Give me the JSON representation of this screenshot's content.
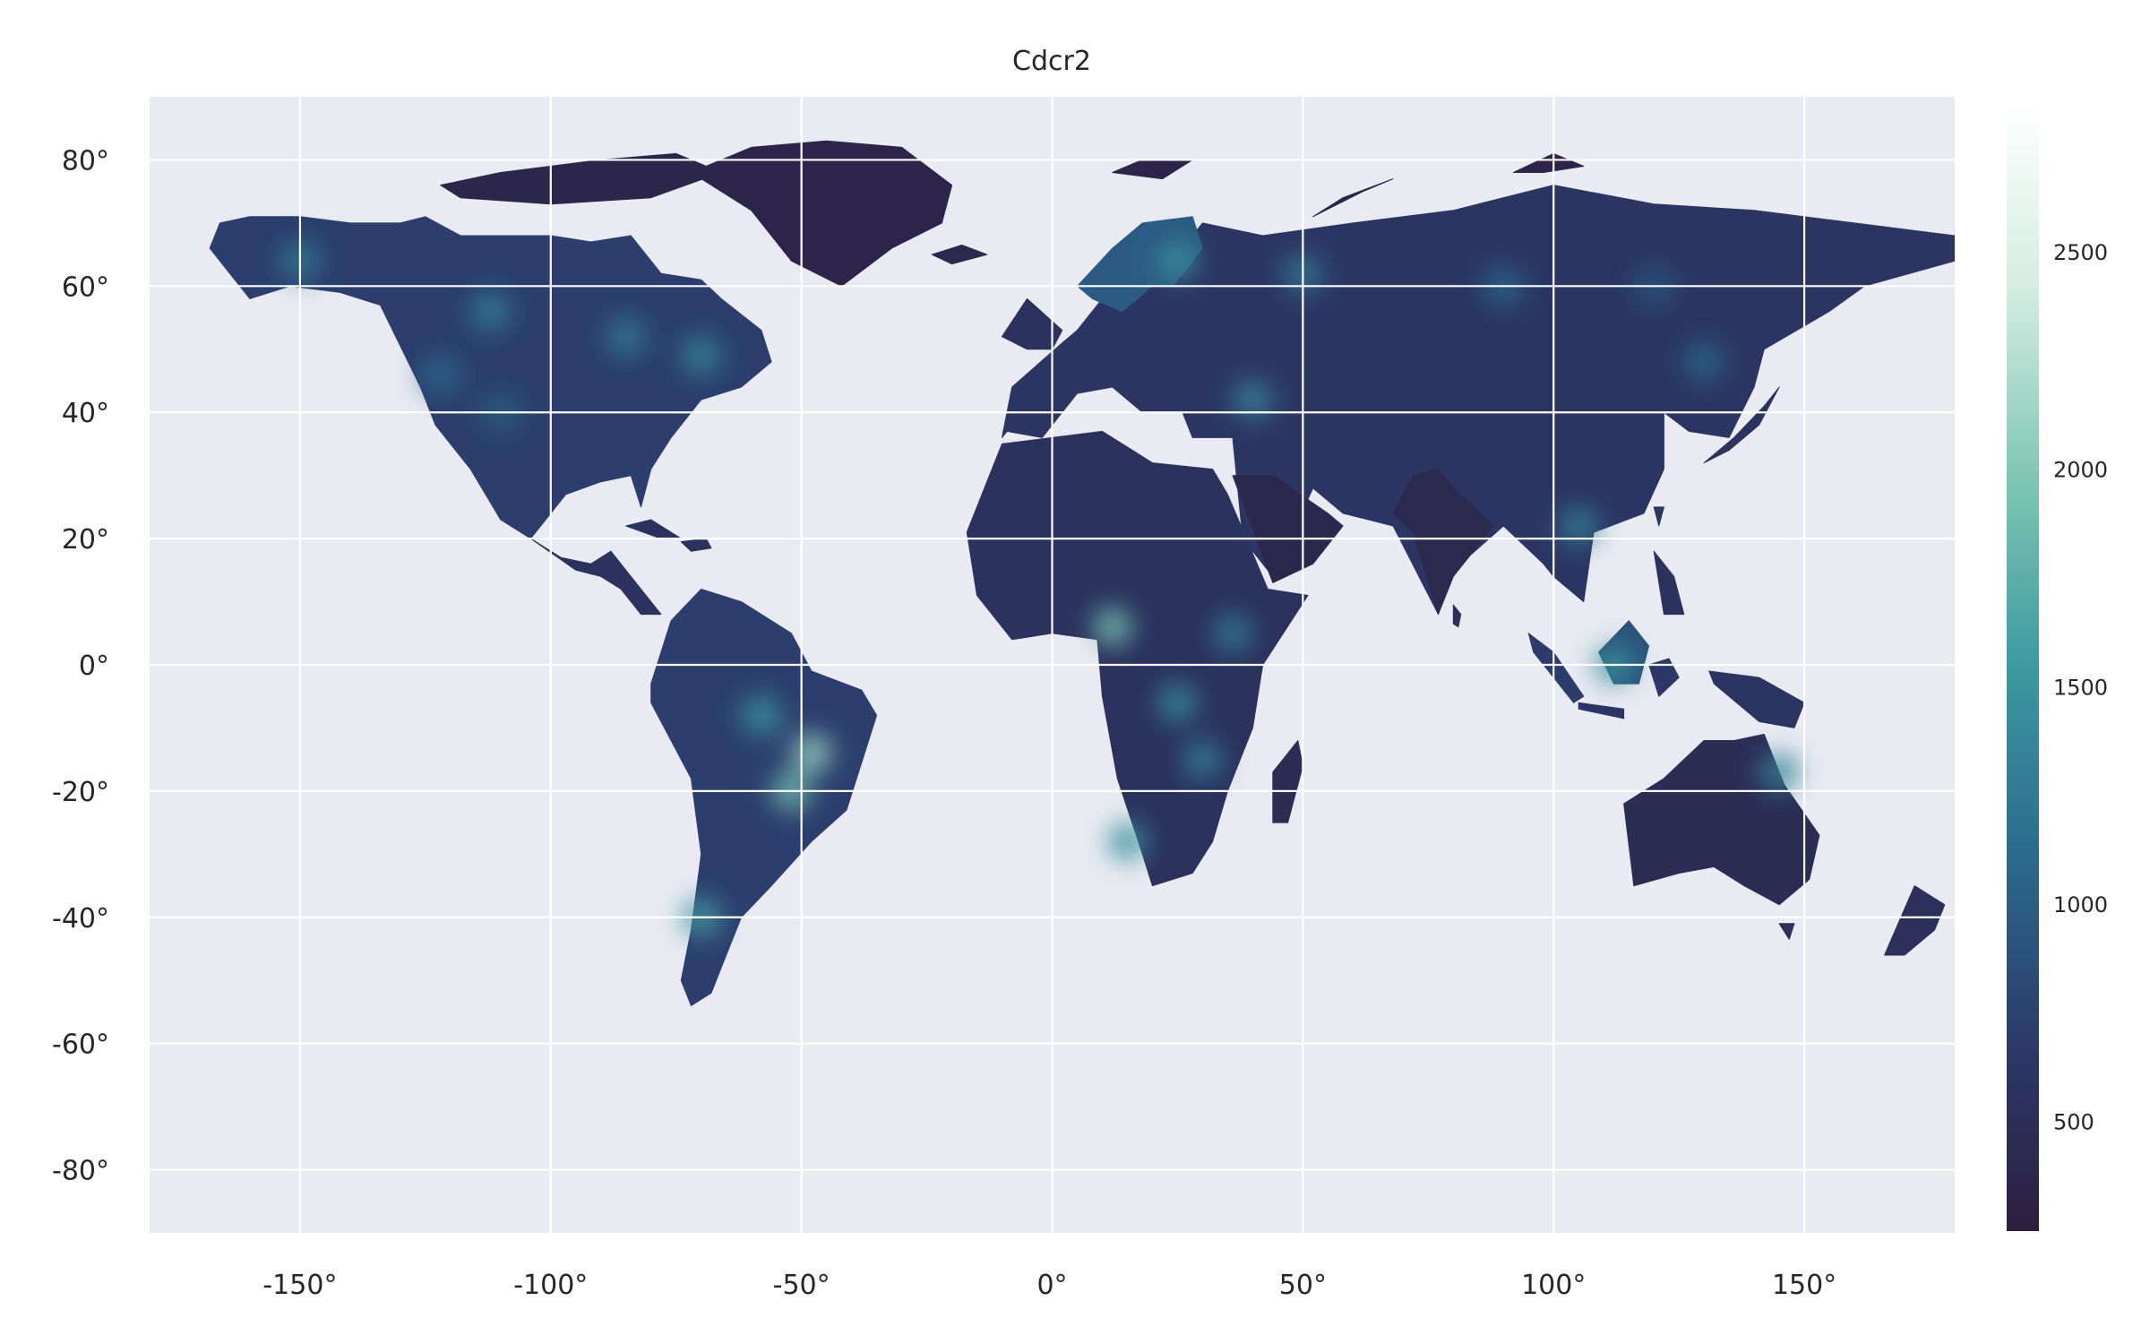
{
  "chart_data": {
    "type": "heatmap",
    "title": "Cdcr2",
    "xlabel": "",
    "ylabel": "",
    "xlim": [
      -180,
      180
    ],
    "ylim": [
      -90,
      90
    ],
    "x_ticks": [
      -150,
      -100,
      -50,
      0,
      50,
      100,
      150
    ],
    "x_tick_labels": [
      "-150°",
      "-100°",
      "-50°",
      "0°",
      "50°",
      "100°",
      "150°"
    ],
    "y_ticks": [
      80,
      60,
      40,
      20,
      0,
      -20,
      -40,
      -60,
      -80
    ],
    "y_tick_labels": [
      "80°",
      "60°",
      "40°",
      "20°",
      "0°",
      "-20°",
      "-40°",
      "-60°",
      "-80°"
    ],
    "grid": true,
    "background_color": "#eaeaf2",
    "colorbar": {
      "vmin": 250,
      "vmax": 2850,
      "ticks": [
        500,
        1000,
        1500,
        2000,
        2500
      ],
      "tick_labels": [
        "500",
        "1000",
        "1500",
        "2000",
        "2500"
      ],
      "colors": [
        "#2c1e3e",
        "#2b3a6a",
        "#2b6a8e",
        "#3d9aa0",
        "#7fc7b3",
        "#d4ede3",
        "#ffffff"
      ]
    },
    "regions": [
      {
        "name": "North America",
        "lon": [
          -168,
          -166,
          -160,
          -150,
          -140,
          -130,
          -125,
          -118,
          -112,
          -100,
          -92,
          -84,
          -78,
          -70,
          -66,
          -58,
          -56,
          -62,
          -70,
          -76,
          -80,
          -82,
          -84,
          -90,
          -97,
          -104,
          -110,
          -116,
          -123,
          -126,
          -134,
          -142,
          -152,
          -160,
          -168
        ],
        "lat": [
          66,
          70,
          71,
          71,
          70,
          70,
          71,
          68,
          68,
          68,
          67,
          68,
          62,
          61,
          58,
          53,
          48,
          44,
          42,
          36,
          31,
          25,
          30,
          29,
          27,
          20,
          23,
          31,
          38,
          44,
          57,
          59,
          60,
          58,
          66
        ],
        "value": 720
      },
      {
        "name": "Central America",
        "lon": [
          -104,
          -98,
          -92,
          -88,
          -84,
          -80,
          -78,
          -82,
          -86,
          -90,
          -95,
          -104
        ],
        "lat": [
          20,
          17,
          16,
          18,
          14,
          10,
          8,
          8,
          12,
          14,
          15,
          20
        ],
        "value": 560
      },
      {
        "name": "South America",
        "lon": [
          -80,
          -76,
          -70,
          -62,
          -52,
          -48,
          -38,
          -35,
          -39,
          -41,
          -48,
          -56,
          -62,
          -65,
          -68,
          -72,
          -74,
          -72,
          -70,
          -72,
          -80,
          -80
        ],
        "lat": [
          -3,
          7,
          12,
          10,
          5,
          -1,
          -4,
          -8,
          -18,
          -23,
          -28,
          -35,
          -40,
          -46,
          -52,
          -54,
          -50,
          -42,
          -30,
          -18,
          -6,
          -3
        ],
        "value": 720
      },
      {
        "name": "Greenland",
        "lon": [
          -72,
          -60,
          -45,
          -30,
          -20,
          -22,
          -32,
          -42,
          -52,
          -60,
          -72
        ],
        "lat": [
          78,
          82,
          83,
          82,
          76,
          70,
          66,
          60,
          64,
          72,
          78
        ],
        "value": 360
      },
      {
        "name": "Arctic Islands",
        "lon": [
          -122,
          -110,
          -90,
          -75,
          -66,
          -80,
          -100,
          -118,
          -122
        ],
        "lat": [
          76,
          78,
          80,
          81,
          78,
          74,
          73,
          74,
          76
        ],
        "value": 380
      },
      {
        "name": "Africa",
        "lon": [
          -17,
          -10,
          0,
          10,
          20,
          32,
          35,
          43,
          51,
          42,
          40,
          35,
          32,
          28,
          20,
          18,
          13,
          10,
          9,
          0,
          -8,
          -15,
          -17
        ],
        "lat": [
          21,
          35,
          36,
          37,
          32,
          31,
          27,
          12,
          11,
          0,
          -10,
          -20,
          -28,
          -33,
          -35,
          -30,
          -18,
          -5,
          4,
          5,
          4,
          11,
          21
        ],
        "value": 560
      },
      {
        "name": "Madagascar",
        "lon": [
          44,
          49,
          50,
          47,
          44,
          44
        ],
        "lat": [
          -17,
          -12,
          -16,
          -25,
          -25,
          -17
        ],
        "value": 480
      },
      {
        "name": "Eurasia",
        "lon": [
          -10,
          -8,
          2,
          5,
          10,
          20,
          30,
          42,
          60,
          80,
          100,
          120,
          140,
          160,
          180,
          180,
          162,
          155,
          142,
          140,
          135,
          127,
          122,
          122,
          118,
          108,
          106,
          100,
          98,
          90,
          80,
          77,
          68,
          58,
          52,
          44,
          38,
          36,
          28,
          26,
          18,
          12,
          5,
          -2,
          -9,
          -10
        ],
        "lat": [
          36,
          44,
          51,
          53,
          58,
          60,
          70,
          68,
          70,
          72,
          76,
          73,
          72,
          70,
          68,
          64,
          60,
          56,
          50,
          44,
          36,
          37,
          40,
          31,
          24,
          21,
          10,
          14,
          16,
          22,
          15,
          8,
          22,
          24,
          28,
          14,
          20,
          36,
          36,
          40,
          40,
          44,
          43,
          36,
          37,
          36
        ],
        "value": 600
      },
      {
        "name": "Scandinavia",
        "lon": [
          5,
          12,
          18,
          28,
          30,
          24,
          20,
          14,
          8,
          5
        ],
        "lat": [
          60,
          66,
          70,
          71,
          66,
          60,
          60,
          56,
          58,
          60
        ],
        "value": 980
      },
      {
        "name": "Arabia",
        "lon": [
          36,
          44,
          55,
          58,
          52,
          44,
          36
        ],
        "lat": [
          30,
          30,
          24,
          22,
          16,
          13,
          30
        ],
        "value": 400
      },
      {
        "name": "India",
        "lon": [
          68,
          72,
          77,
          80,
          86,
          88,
          80,
          77,
          72,
          68
        ],
        "lat": [
          24,
          21,
          8,
          14,
          20,
          22,
          28,
          31,
          30,
          24
        ],
        "value": 420
      },
      {
        "name": "Borneo",
        "lon": [
          109,
          115,
          119,
          117,
          112,
          109
        ],
        "lat": [
          2,
          7,
          3,
          -3,
          -3,
          2
        ],
        "value": 900
      },
      {
        "name": "Sumatra",
        "lon": [
          95,
          100,
          106,
          104,
          96,
          95
        ],
        "lat": [
          5,
          2,
          -5,
          -6,
          2,
          5
        ],
        "value": 700
      },
      {
        "name": "Java",
        "lon": [
          105,
          114,
          114,
          105,
          105
        ],
        "lat": [
          -6,
          -7,
          -8.5,
          -7,
          -6
        ],
        "value": 600
      },
      {
        "name": "Sulawesi",
        "lon": [
          119,
          123,
          125,
          121,
          119
        ],
        "lat": [
          0,
          1,
          -2,
          -5,
          0
        ],
        "value": 650
      },
      {
        "name": "Philippines",
        "lon": [
          120,
          124,
          126,
          122,
          120
        ],
        "lat": [
          18,
          14,
          8,
          8,
          18
        ],
        "value": 560
      },
      {
        "name": "New Guinea",
        "lon": [
          131,
          141,
          150,
          148,
          141,
          132,
          131
        ],
        "lat": [
          -1,
          -2,
          -6,
          -10,
          -9,
          -3,
          -1
        ],
        "value": 600
      },
      {
        "name": "Japan",
        "lon": [
          130,
          135,
          141,
          145,
          142,
          136,
          130
        ],
        "lat": [
          32,
          34,
          38,
          44,
          41,
          36,
          32
        ],
        "value": 580
      },
      {
        "name": "Australia",
        "lon": [
          114,
          122,
          130,
          136,
          142,
          146,
          153,
          151,
          145,
          138,
          132,
          125,
          116,
          114
        ],
        "lat": [
          -22,
          -18,
          -12,
          -12,
          -11,
          -19,
          -27,
          -34,
          -38,
          -35,
          -32,
          -33,
          -35,
          -22
        ],
        "value": 480
      },
      {
        "name": "New Zealand",
        "lon": [
          172,
          178,
          176,
          170,
          166,
          172
        ],
        "lat": [
          -35,
          -38,
          -42,
          -46,
          -46,
          -35
        ],
        "value": 520
      },
      {
        "name": "British Isles",
        "lon": [
          -10,
          -5,
          2,
          0,
          -5,
          -10
        ],
        "lat": [
          52,
          58,
          53,
          50,
          50,
          52
        ],
        "value": 560
      },
      {
        "name": "Iceland",
        "lon": [
          -24,
          -18,
          -13,
          -20,
          -24
        ],
        "lat": [
          65,
          66.5,
          65,
          63.5,
          65
        ],
        "value": 420
      },
      {
        "name": "Svalbard",
        "lon": [
          12,
          18,
          28,
          22,
          12
        ],
        "lat": [
          78,
          80,
          80,
          77,
          78
        ],
        "value": 360
      },
      {
        "name": "Novaya Zemlya",
        "lon": [
          52,
          58,
          68,
          62,
          52
        ],
        "lat": [
          71,
          74,
          77,
          75,
          71
        ],
        "value": 360
      },
      {
        "name": "Severnaya Zemlya",
        "lon": [
          92,
          100,
          106,
          98,
          92
        ],
        "lat": [
          78,
          81,
          79,
          78,
          78
        ],
        "value": 360
      },
      {
        "name": "Cuba",
        "lon": [
          -85,
          -80,
          -74,
          -78,
          -85
        ],
        "lat": [
          22,
          23,
          20,
          20,
          22
        ],
        "value": 560
      },
      {
        "name": "Hispaniola",
        "lon": [
          -74,
          -69,
          -68,
          -72,
          -74
        ],
        "lat": [
          19.5,
          20,
          18.5,
          18,
          19.5
        ],
        "value": 560
      },
      {
        "name": "Sri Lanka",
        "lon": [
          80,
          81.5,
          81,
          80,
          80
        ],
        "lat": [
          9.5,
          8,
          6,
          6.5,
          9.5
        ],
        "value": 520
      },
      {
        "name": "Hainan / Taiwan",
        "lon": [
          120,
          122,
          121,
          120
        ],
        "lat": [
          25,
          25,
          22,
          25
        ],
        "value": 600
      },
      {
        "name": "Tasmania",
        "lon": [
          145,
          148,
          147,
          145
        ],
        "lat": [
          -41,
          -41,
          -43.5,
          -41
        ],
        "value": 520
      }
    ],
    "hotspots": [
      {
        "lon": -150,
        "lat": 64,
        "value": 1250
      },
      {
        "lon": -112,
        "lat": 56,
        "value": 1300
      },
      {
        "lon": -85,
        "lat": 52,
        "value": 1250
      },
      {
        "lon": -70,
        "lat": 49,
        "value": 1350
      },
      {
        "lon": -122,
        "lat": 46,
        "value": 1100
      },
      {
        "lon": -110,
        "lat": 40,
        "value": 1000
      },
      {
        "lon": 25,
        "lat": 64,
        "value": 1450
      },
      {
        "lon": 50,
        "lat": 62,
        "value": 1250
      },
      {
        "lon": 90,
        "lat": 60,
        "value": 1100
      },
      {
        "lon": 120,
        "lat": 60,
        "value": 950
      },
      {
        "lon": -48,
        "lat": -14,
        "value": 2100
      },
      {
        "lon": -52,
        "lat": -20,
        "value": 1900
      },
      {
        "lon": -58,
        "lat": -8,
        "value": 1500
      },
      {
        "lon": -70,
        "lat": -40,
        "value": 1600
      },
      {
        "lon": 12,
        "lat": 6,
        "value": 1900
      },
      {
        "lon": 25,
        "lat": -6,
        "value": 1400
      },
      {
        "lon": 30,
        "lat": -15,
        "value": 1300
      },
      {
        "lon": 15,
        "lat": -28,
        "value": 1500
      },
      {
        "lon": 36,
        "lat": 5,
        "value": 1250
      },
      {
        "lon": 105,
        "lat": 22,
        "value": 1300
      },
      {
        "lon": 112,
        "lat": 0,
        "value": 1500
      },
      {
        "lon": 145,
        "lat": -17,
        "value": 1350
      },
      {
        "lon": 130,
        "lat": 48,
        "value": 1100
      },
      {
        "lon": 40,
        "lat": 42,
        "value": 1350
      }
    ]
  }
}
